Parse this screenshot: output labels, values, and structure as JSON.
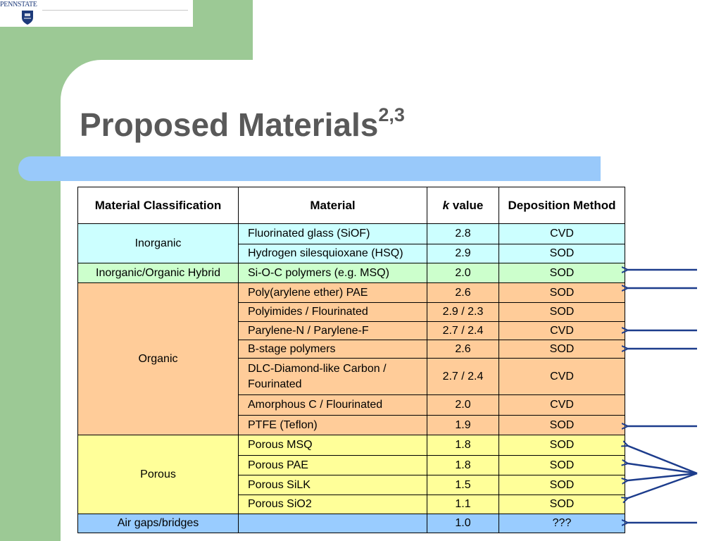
{
  "logo": {
    "text": "PENNSTATE"
  },
  "title": {
    "main": "Proposed Materials",
    "superscript": "2,3"
  },
  "table": {
    "headers": {
      "classification": "Material Classification",
      "material": "Material",
      "k_italic": "k",
      "k_rest": " value",
      "deposition": "Deposition Method"
    },
    "groups": [
      {
        "classification": "Inorganic",
        "rows": [
          {
            "material": "Fluorinated glass (SiOF)",
            "k": "2.8",
            "method": "CVD"
          },
          {
            "material": "Hydrogen silesquioxane (HSQ)",
            "k": "2.9",
            "method": "SOD"
          }
        ]
      },
      {
        "classification": "Inorganic/Organic Hybrid",
        "rows": [
          {
            "material": "Si-O-C polymers (e.g. MSQ)",
            "k": "2.0",
            "method": "SOD"
          }
        ]
      },
      {
        "classification": "Organic",
        "rows": [
          {
            "material": "Poly(arylene ether) PAE",
            "k": "2.6",
            "method": "SOD"
          },
          {
            "material": "Polyimides / Flourinated",
            "k": "2.9 / 2.3",
            "method": "SOD"
          },
          {
            "material": "Parylene-N / Parylene-F",
            "k": "2.7 / 2.4",
            "method": "CVD"
          },
          {
            "material": "B-stage polymers",
            "k": "2.6",
            "method": "SOD"
          },
          {
            "material": "DLC-Diamond-like Carbon / Fourinated",
            "k": "2.7 / 2.4",
            "method": "CVD"
          },
          {
            "material": "Amorphous C / Flourinated",
            "k": "2.0",
            "method": "CVD"
          },
          {
            "material": "PTFE (Teflon)",
            "k": "1.9",
            "method": "SOD"
          }
        ]
      },
      {
        "classification": "Porous",
        "rows": [
          {
            "material": "Porous MSQ",
            "k": "1.8",
            "method": "SOD"
          },
          {
            "material": "Porous PAE",
            "k": "1.8",
            "method": "SOD"
          },
          {
            "material": "Porous SiLK",
            "k": "1.5",
            "method": "SOD"
          },
          {
            "material": "Porous SiO2",
            "k": "1.1",
            "method": "SOD"
          }
        ]
      },
      {
        "classification": "Air gaps/bridges",
        "rows": [
          {
            "material": "",
            "k": "1.0",
            "method": "???"
          }
        ]
      }
    ]
  },
  "colors": {
    "background_green": "#9cc995",
    "title_bar_blue": "#99c9fa",
    "inorganic": "#ccffff",
    "hybrid": "#ccffcc",
    "organic": "#ffcc99",
    "porous": "#ffff99",
    "air": "#99ccff",
    "arrow": "#1c3c8c"
  }
}
